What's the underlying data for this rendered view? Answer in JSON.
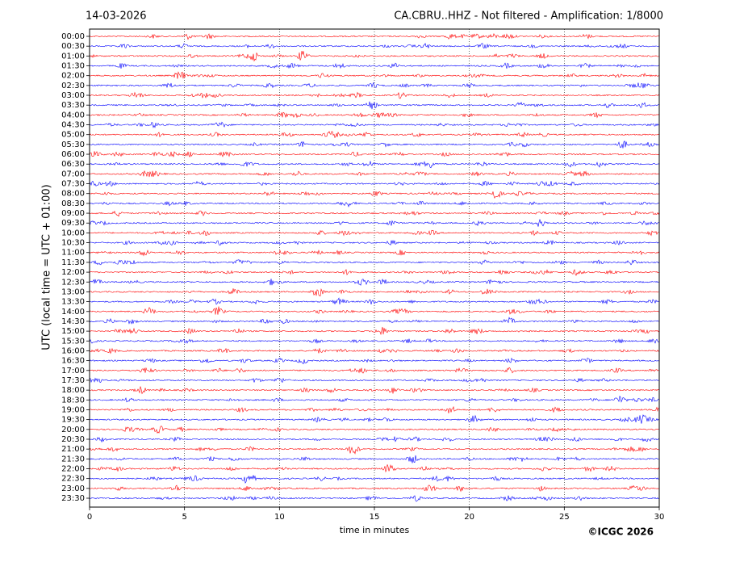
{
  "chart_data": {
    "type": "helicorder",
    "date": "14-03-2026",
    "title": "CA.CBRU..HHZ - Not filtered - Amplification: 1/8000",
    "ylabel": "UTC (local time = UTC + 01:00)",
    "xlabel": "time in minutes",
    "copyright": "©ICGC 2026",
    "categories": [
      "00:00",
      "00:30",
      "01:00",
      "01:30",
      "02:00",
      "02:30",
      "03:00",
      "03:30",
      "04:00",
      "04:30",
      "05:00",
      "05:30",
      "06:00",
      "06:30",
      "07:00",
      "07:30",
      "08:00",
      "08:30",
      "09:00",
      "09:30",
      "10:00",
      "10:30",
      "11:00",
      "11:30",
      "12:00",
      "12:30",
      "13:00",
      "13:30",
      "14:00",
      "14:30",
      "15:00",
      "15:30",
      "16:00",
      "16:30",
      "17:00",
      "17:30",
      "18:00",
      "18:30",
      "19:00",
      "19:30",
      "20:00",
      "20:30",
      "21:00",
      "21:30",
      "22:00",
      "22:30",
      "23:00",
      "23:30"
    ],
    "colors": [
      "#ff0000",
      "#0000ff"
    ],
    "xlim": [
      0,
      30
    ],
    "xticks": [
      0,
      5,
      10,
      15,
      20,
      25,
      30
    ],
    "grid": true
  }
}
